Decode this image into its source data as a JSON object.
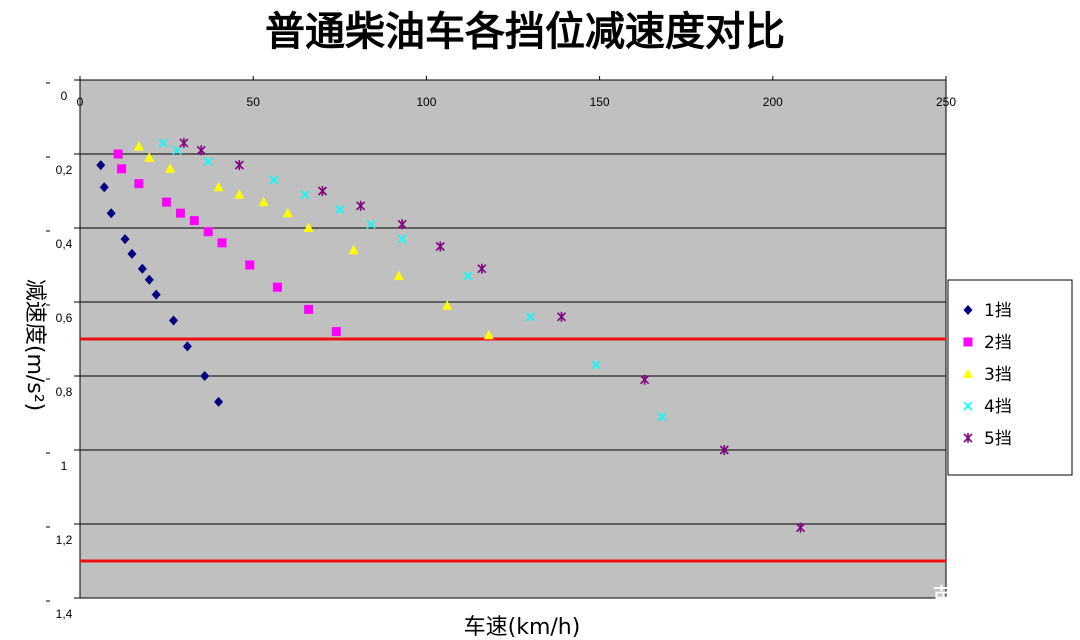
{
  "chart_data": {
    "type": "scatter",
    "title": "普通柴油车各挡位减速度对比",
    "xlabel": "车速(km/h)",
    "ylabel": "减速度(m/s²)",
    "xlim": [
      0,
      250
    ],
    "ylim": [
      0,
      1.4
    ],
    "y_axis_inverted": true,
    "x_axis_position": "top",
    "x_ticks": [
      0,
      50,
      100,
      150,
      200,
      250
    ],
    "y_ticks": [
      0,
      0.2,
      0.4,
      0.6,
      0.8,
      1,
      1.2,
      1.4
    ],
    "y_tick_labels": [
      "0",
      "0,2",
      "0,4",
      "0,6",
      "0,8",
      "1",
      "1,2",
      "1,4"
    ],
    "grid": "horizontal",
    "plot_background": "#c0c0c0",
    "legend_position": "right",
    "reference_lines": [
      {
        "y": 0.7,
        "color": "#ee1111"
      },
      {
        "y": 1.3,
        "color": "#ee1111"
      }
    ],
    "series": [
      {
        "name": "1挡",
        "marker": "diamond",
        "color": "#000080",
        "points": [
          [
            6,
            0.23
          ],
          [
            7,
            0.29
          ],
          [
            9,
            0.36
          ],
          [
            13,
            0.43
          ],
          [
            15,
            0.47
          ],
          [
            18,
            0.51
          ],
          [
            20,
            0.54
          ],
          [
            22,
            0.58
          ],
          [
            27,
            0.65
          ],
          [
            31,
            0.72
          ],
          [
            36,
            0.8
          ],
          [
            40,
            0.87
          ]
        ]
      },
      {
        "name": "2挡",
        "marker": "square",
        "color": "#ff00ff",
        "points": [
          [
            11,
            0.2
          ],
          [
            12,
            0.24
          ],
          [
            17,
            0.28
          ],
          [
            25,
            0.33
          ],
          [
            29,
            0.36
          ],
          [
            33,
            0.38
          ],
          [
            37,
            0.41
          ],
          [
            41,
            0.44
          ],
          [
            49,
            0.5
          ],
          [
            57,
            0.56
          ],
          [
            66,
            0.62
          ],
          [
            74,
            0.68
          ]
        ]
      },
      {
        "name": "3挡",
        "marker": "triangle",
        "color": "#ffff00",
        "points": [
          [
            17,
            0.18
          ],
          [
            20,
            0.21
          ],
          [
            26,
            0.24
          ],
          [
            40,
            0.29
          ],
          [
            46,
            0.31
          ],
          [
            53,
            0.33
          ],
          [
            60,
            0.36
          ],
          [
            66,
            0.4
          ],
          [
            79,
            0.46
          ],
          [
            92,
            0.53
          ],
          [
            106,
            0.61
          ],
          [
            118,
            0.69
          ]
        ]
      },
      {
        "name": "4挡",
        "marker": "x",
        "color": "#00ffff",
        "points": [
          [
            24,
            0.17
          ],
          [
            28,
            0.19
          ],
          [
            37,
            0.22
          ],
          [
            56,
            0.27
          ],
          [
            65,
            0.31
          ],
          [
            75,
            0.35
          ],
          [
            84,
            0.39
          ],
          [
            93,
            0.43
          ],
          [
            112,
            0.53
          ],
          [
            130,
            0.64
          ],
          [
            149,
            0.77
          ],
          [
            168,
            0.91
          ]
        ]
      },
      {
        "name": "5挡",
        "marker": "asterisk",
        "color": "#800080",
        "points": [
          [
            30,
            0.17
          ],
          [
            35,
            0.19
          ],
          [
            46,
            0.23
          ],
          [
            70,
            0.3
          ],
          [
            81,
            0.34
          ],
          [
            93,
            0.39
          ],
          [
            104,
            0.45
          ],
          [
            116,
            0.51
          ],
          [
            139,
            0.64
          ],
          [
            163,
            0.81
          ],
          [
            186,
            1.0
          ],
          [
            208,
            1.21
          ]
        ]
      }
    ]
  },
  "watermark": "萝卜报告"
}
